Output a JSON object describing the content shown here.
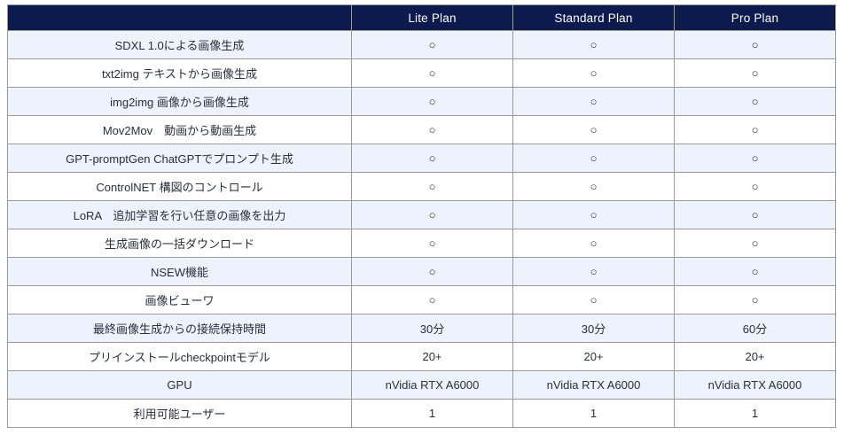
{
  "table": {
    "columns": [
      "",
      "Lite Plan",
      "Standard Plan",
      "Pro Plan"
    ],
    "rows": [
      {
        "feature": "SDXL 1.0による画像生成",
        "values": [
          "○",
          "○",
          "○"
        ]
      },
      {
        "feature": "txt2img テキストから画像生成",
        "values": [
          "○",
          "○",
          "○"
        ]
      },
      {
        "feature": "img2img 画像から画像生成",
        "values": [
          "○",
          "○",
          "○"
        ]
      },
      {
        "feature": "Mov2Mov　動画から動画生成",
        "values": [
          "○",
          "○",
          "○"
        ]
      },
      {
        "feature": "GPT-promptGen ChatGPTでプロンプト生成",
        "values": [
          "○",
          "○",
          "○"
        ]
      },
      {
        "feature": "ControlNET 構図のコントロール",
        "values": [
          "○",
          "○",
          "○"
        ]
      },
      {
        "feature": "LoRA　追加学習を行い任意の画像を出力",
        "values": [
          "○",
          "○",
          "○"
        ]
      },
      {
        "feature": "生成画像の一括ダウンロード",
        "values": [
          "○",
          "○",
          "○"
        ]
      },
      {
        "feature": "NSEW機能",
        "values": [
          "○",
          "○",
          "○"
        ]
      },
      {
        "feature": "画像ビューワ",
        "values": [
          "○",
          "○",
          "○"
        ]
      },
      {
        "feature": "最終画像生成からの接続保持時間",
        "values": [
          "30分",
          "30分",
          "60分"
        ]
      },
      {
        "feature": "プリインストールcheckpointモデル",
        "values": [
          "20+",
          "20+",
          "20+"
        ]
      },
      {
        "feature": "GPU",
        "values": [
          "nVidia RTX A6000",
          "nVidia RTX A6000",
          "nVidia RTX A6000"
        ]
      },
      {
        "feature": "利用可能ユーザー",
        "values": [
          "1",
          "1",
          "1"
        ]
      }
    ],
    "colors": {
      "header_bg": "#0d1a4d",
      "header_text": "#ffffff",
      "row_alt_bg": "#eef2fc",
      "row_bg": "#ffffff",
      "border": "#999999",
      "text": "#2a2f3d"
    }
  }
}
